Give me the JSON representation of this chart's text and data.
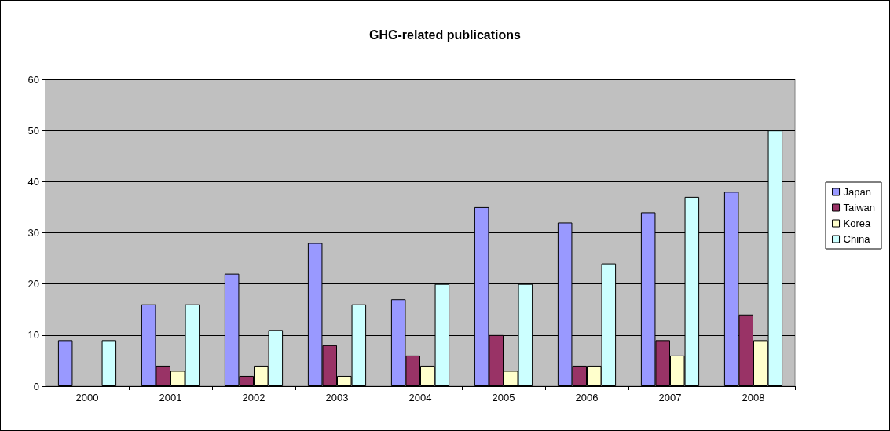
{
  "chart_data": {
    "type": "bar",
    "title": "GHG-related publications",
    "categories": [
      "2000",
      "2001",
      "2002",
      "2003",
      "2004",
      "2005",
      "2006",
      "2007",
      "2008"
    ],
    "series": [
      {
        "name": "Japan",
        "color": "#9999ff",
        "values": [
          9,
          16,
          22,
          28,
          17,
          35,
          32,
          34,
          38
        ]
      },
      {
        "name": "Taiwan",
        "color": "#993366",
        "values": [
          0,
          4,
          2,
          8,
          6,
          10,
          4,
          9,
          14
        ]
      },
      {
        "name": "Korea",
        "color": "#ffffcc",
        "values": [
          0,
          3,
          4,
          2,
          4,
          3,
          4,
          6,
          9
        ]
      },
      {
        "name": "China",
        "color": "#ccffff",
        "values": [
          9,
          16,
          11,
          16,
          20,
          20,
          24,
          37,
          50
        ]
      }
    ],
    "ylim": [
      0,
      60
    ],
    "yticks": [
      0,
      10,
      20,
      30,
      40,
      50,
      60
    ],
    "grid": "y",
    "legend": "right"
  }
}
